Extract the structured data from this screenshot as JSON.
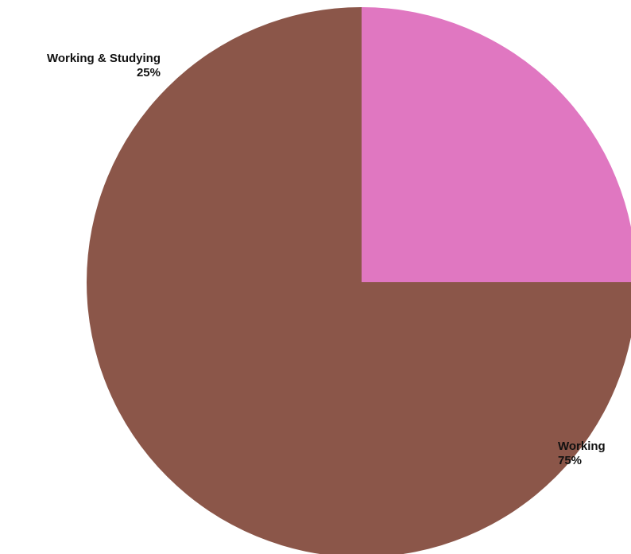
{
  "chart_data": {
    "type": "pie",
    "title": "",
    "start_angle_deg": 0,
    "direction": "counterclockwise",
    "slices": [
      {
        "label": "Working",
        "value": 75,
        "value_label": "75%",
        "color": "#8B5649"
      },
      {
        "label": "Working & Studying",
        "value": 25,
        "value_label": "25%",
        "color": "#E077C1"
      }
    ]
  }
}
